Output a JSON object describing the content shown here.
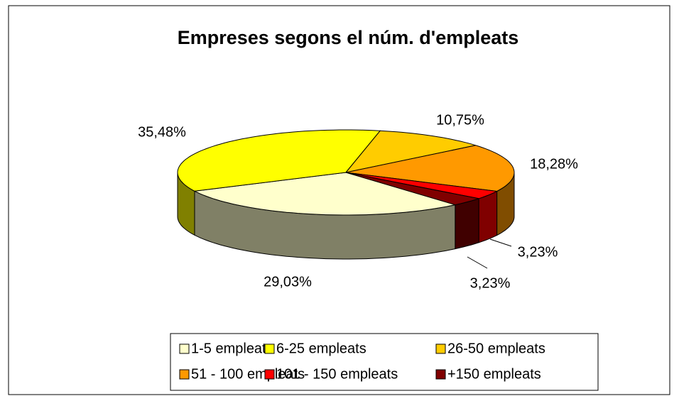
{
  "chart_data": {
    "type": "pie",
    "title": "Empreses segons el núm. d'empleats",
    "categories": [
      "1-5 empleats",
      "6-25 empleats",
      "26-50 empleats",
      "51 - 100 empleats",
      "101 - 150 empleats",
      "+150 empleats"
    ],
    "values": [
      29.03,
      35.48,
      10.75,
      18.28,
      3.23,
      3.23
    ],
    "value_labels": [
      "29,03%",
      "35,48%",
      "10,75%",
      "18,28%",
      "3,23%",
      "3,23%"
    ],
    "colors": [
      "#ffffcc",
      "#ffff00",
      "#ffcc00",
      "#ff9900",
      "#ff0000",
      "#800000"
    ],
    "legend": "bottom"
  }
}
